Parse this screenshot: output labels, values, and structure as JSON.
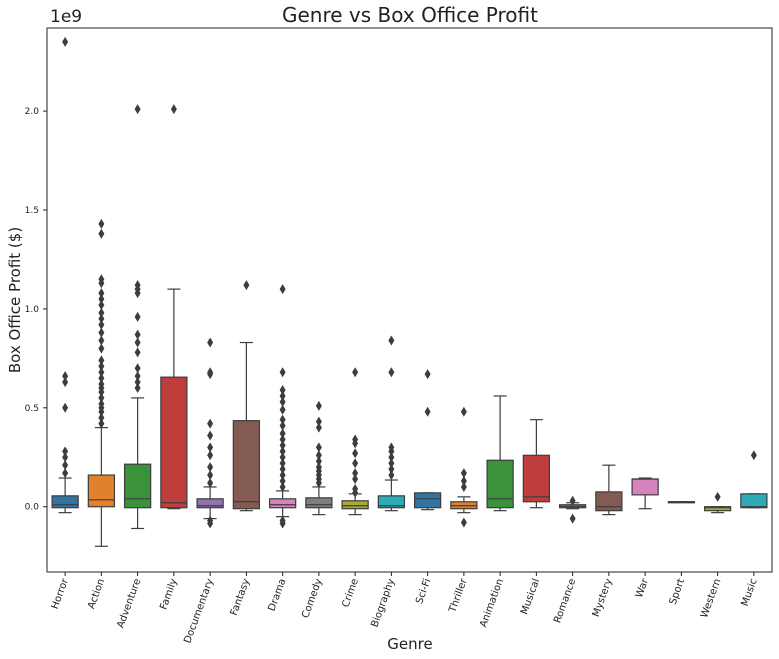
{
  "chart_data": {
    "type": "box",
    "title": "Genre vs Box Office Profit",
    "xlabel": "Genre",
    "ylabel": "Box Office Profit ($)",
    "y_offset_label": "1e9",
    "ylim": [
      -0.33,
      2.42
    ],
    "yticks": [
      0.0,
      0.5,
      1.0,
      1.5,
      2.0
    ],
    "ytick_labels": [
      "0.0",
      "0.5",
      "1.0",
      "1.5",
      "2.0"
    ],
    "y_unit_multiplier": 1000000000,
    "grid": false,
    "categories": [
      "Horror",
      "Action",
      "Adventure",
      "Family",
      "Documentary",
      "Fantasy",
      "Drama",
      "Comedy",
      "Crime",
      "Biography",
      "Sci-Fi",
      "Thriller",
      "Animation",
      "Musical",
      "Romance",
      "Mystery",
      "War",
      "Sport",
      "Western",
      "Music"
    ],
    "colors": [
      "#3274a1",
      "#e1812c",
      "#3a923a",
      "#c03d3e",
      "#9372b2",
      "#845b53",
      "#d684bd",
      "#7f7f7f",
      "#a9aa35",
      "#2eabb8",
      "#3274a1",
      "#e1812c",
      "#3a923a",
      "#c03d3e",
      "#9372b2",
      "#845b53",
      "#d684bd",
      "#7f7f7f",
      "#a9aa35",
      "#2eabb8"
    ],
    "boxes": [
      {
        "whislo": -0.03,
        "q1": -0.005,
        "med": 0.01,
        "q3": 0.055,
        "whishi": 0.145,
        "fliers": [
          0.17,
          0.21,
          0.25,
          0.28,
          0.5,
          0.63,
          0.66,
          2.35
        ]
      },
      {
        "whislo": -0.2,
        "q1": 0.0,
        "med": 0.035,
        "q3": 0.16,
        "whishi": 0.4,
        "fliers": [
          0.42,
          0.45,
          0.48,
          0.5,
          0.52,
          0.55,
          0.58,
          0.6,
          0.62,
          0.65,
          0.68,
          0.71,
          0.74,
          0.8,
          0.84,
          0.88,
          0.92,
          0.95,
          0.98,
          1.02,
          1.05,
          1.08,
          1.13,
          1.15,
          1.38,
          1.43
        ]
      },
      {
        "whislo": -0.11,
        "q1": -0.005,
        "med": 0.04,
        "q3": 0.215,
        "whishi": 0.55,
        "fliers": [
          0.6,
          0.63,
          0.66,
          0.7,
          0.78,
          0.83,
          0.87,
          0.96,
          1.08,
          1.1,
          1.12,
          2.01
        ]
      },
      {
        "whislo": -0.01,
        "q1": -0.005,
        "med": 0.02,
        "q3": 0.655,
        "whishi": 1.1,
        "fliers": [
          2.01
        ]
      },
      {
        "whislo": -0.06,
        "q1": -0.005,
        "med": 0.005,
        "q3": 0.04,
        "whishi": 0.1,
        "fliers": [
          -0.085,
          -0.07,
          0.12,
          0.16,
          0.2,
          0.26,
          0.3,
          0.36,
          0.42,
          0.67,
          0.68,
          0.83
        ]
      },
      {
        "whislo": -0.02,
        "q1": -0.01,
        "med": 0.025,
        "q3": 0.435,
        "whishi": 0.83,
        "fliers": [
          1.12
        ]
      },
      {
        "whislo": -0.05,
        "q1": -0.005,
        "med": 0.01,
        "q3": 0.04,
        "whishi": 0.08,
        "fliers": [
          -0.085,
          -0.07,
          0.1,
          0.13,
          0.16,
          0.19,
          0.22,
          0.25,
          0.28,
          0.31,
          0.34,
          0.37,
          0.41,
          0.44,
          0.49,
          0.53,
          0.56,
          0.59,
          0.68,
          1.1
        ]
      },
      {
        "whislo": -0.04,
        "q1": -0.005,
        "med": 0.01,
        "q3": 0.045,
        "whishi": 0.1,
        "fliers": [
          0.12,
          0.14,
          0.16,
          0.18,
          0.2,
          0.23,
          0.26,
          0.3,
          0.4,
          0.43,
          0.51
        ]
      },
      {
        "whislo": -0.04,
        "q1": -0.01,
        "med": 0.005,
        "q3": 0.03,
        "whishi": 0.065,
        "fliers": [
          0.07,
          0.09,
          0.14,
          0.17,
          0.22,
          0.27,
          0.32,
          0.34,
          0.68
        ]
      },
      {
        "whislo": -0.02,
        "q1": -0.005,
        "med": 0.005,
        "q3": 0.055,
        "whishi": 0.135,
        "fliers": [
          0.16,
          0.19,
          0.22,
          0.25,
          0.28,
          0.3,
          0.68,
          0.84
        ]
      },
      {
        "whislo": -0.015,
        "q1": -0.005,
        "med": 0.04,
        "q3": 0.07,
        "whishi": 0.07,
        "fliers": [
          0.48,
          0.67
        ]
      },
      {
        "whislo": -0.03,
        "q1": -0.01,
        "med": 0.005,
        "q3": 0.025,
        "whishi": 0.05,
        "fliers": [
          -0.08,
          0.1,
          0.13,
          0.17,
          0.48
        ]
      },
      {
        "whislo": -0.02,
        "q1": -0.005,
        "med": 0.04,
        "q3": 0.235,
        "whishi": 0.56,
        "fliers": []
      },
      {
        "whislo": -0.005,
        "q1": 0.025,
        "med": 0.05,
        "q3": 0.26,
        "whishi": 0.44,
        "fliers": []
      },
      {
        "whislo": -0.01,
        "q1": -0.005,
        "med": 0.002,
        "q3": 0.01,
        "whishi": 0.02,
        "fliers": [
          -0.06,
          0.03
        ]
      },
      {
        "whislo": -0.04,
        "q1": -0.02,
        "med": 0.0,
        "q3": 0.075,
        "whishi": 0.21,
        "fliers": []
      },
      {
        "whislo": -0.01,
        "q1": 0.06,
        "med": 0.14,
        "q3": 0.14,
        "whishi": 0.145,
        "fliers": []
      },
      {
        "whislo": 0.025,
        "q1": 0.025,
        "med": 0.025,
        "q3": 0.025,
        "whishi": 0.025,
        "fliers": []
      },
      {
        "whislo": -0.03,
        "q1": -0.02,
        "med": -0.005,
        "q3": 0.0,
        "whishi": 0.0,
        "fliers": [
          0.05
        ]
      },
      {
        "whislo": -0.005,
        "q1": -0.005,
        "med": 0.0,
        "q3": 0.065,
        "whishi": 0.065,
        "fliers": [
          0.26
        ]
      }
    ]
  }
}
